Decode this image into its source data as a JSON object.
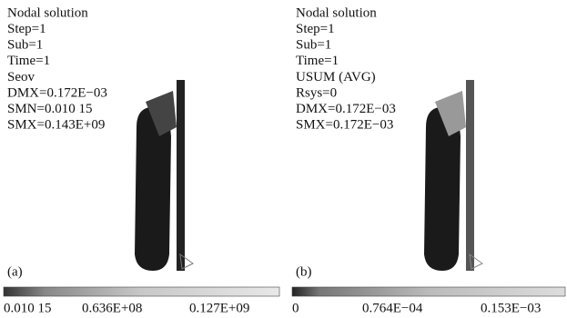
{
  "panels": [
    {
      "lines": [
        "Nodal solution",
        "Step=1",
        "Sub=1",
        "Time=1",
        "Seov",
        "DMX=0.172E−03",
        "SMN=0.010 15",
        "SMX=0.143E+09"
      ],
      "label": "(a)",
      "scale_labels": [
        "0.010 15",
        "0.636E+08",
        "0.127E+09"
      ]
    },
    {
      "lines": [
        "Nodal solution",
        "Step=1",
        "Sub=1",
        "Time=1",
        "USUM (AVG)",
        "Rsys=0",
        "DMX=0.172E−03",
        "SMX=0.172E−03"
      ],
      "label": "(b)",
      "scale_labels": [
        "0",
        "0.764E−04",
        "0.153E−03"
      ]
    }
  ]
}
